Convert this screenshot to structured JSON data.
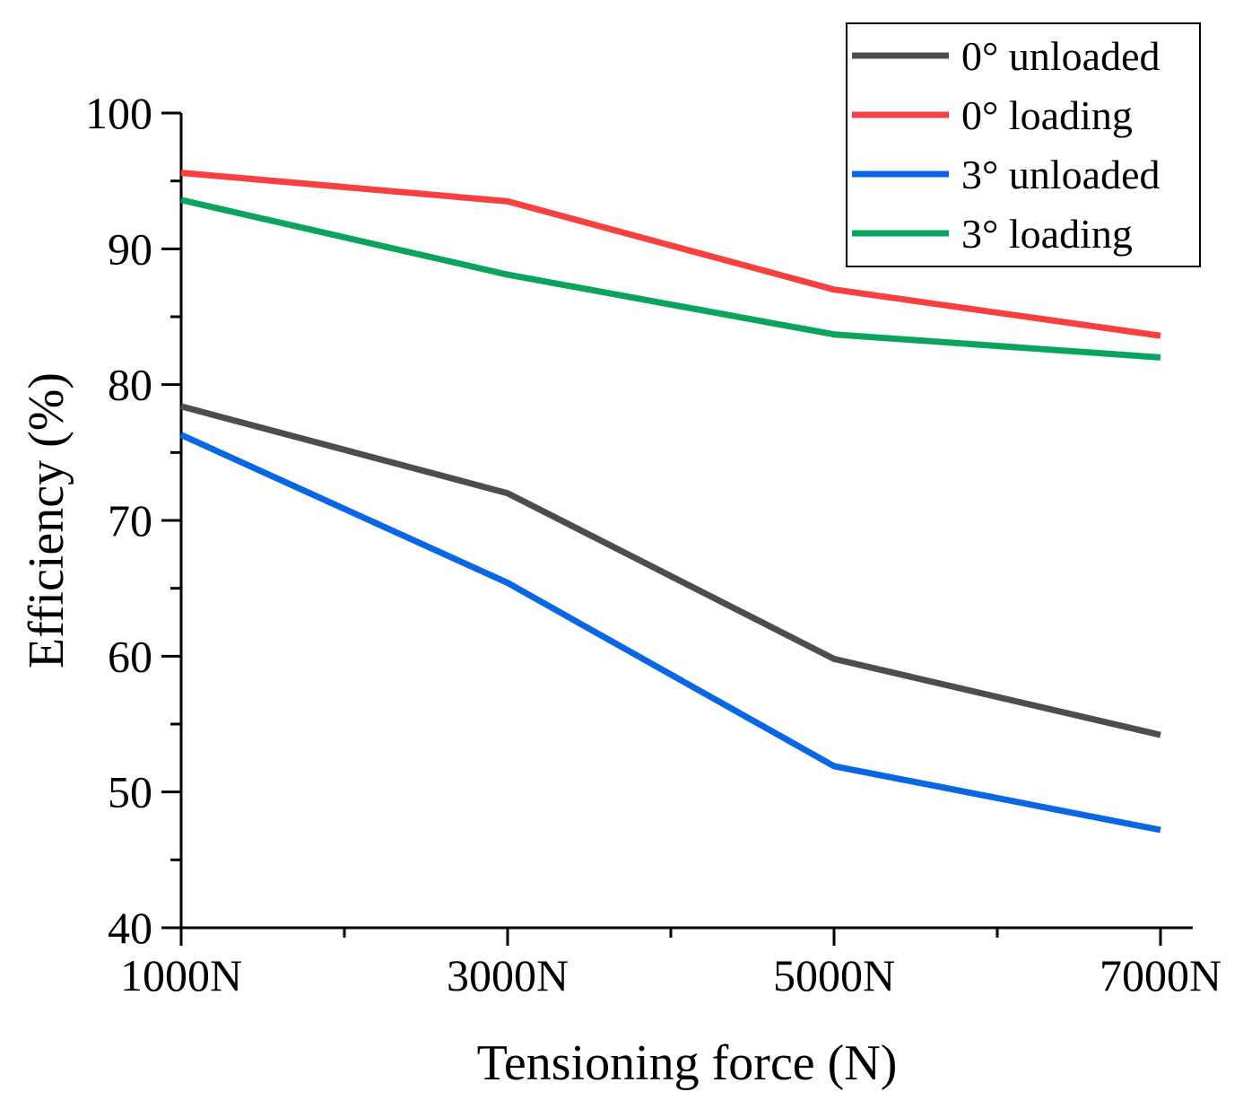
{
  "chart_data": {
    "type": "line",
    "title": "",
    "xlabel": "Tensioning force (N)",
    "ylabel": "Efficiency (%)",
    "categories": [
      "1000N",
      "3000N",
      "5000N",
      "7000N"
    ],
    "ylim": [
      40,
      100
    ],
    "yticks": [
      40,
      50,
      60,
      70,
      80,
      90,
      100
    ],
    "grid": false,
    "legend_position": "top-right",
    "series": [
      {
        "name": "0° unloaded",
        "color": "#4d4d4d",
        "values": [
          78.4,
          72.0,
          59.8,
          54.2
        ]
      },
      {
        "name": "0° loading",
        "color": "#f84040",
        "values": [
          95.6,
          93.5,
          87.0,
          83.6
        ]
      },
      {
        "name": "3° unloaded",
        "color": "#0b66e4",
        "values": [
          76.3,
          65.4,
          51.9,
          47.2
        ]
      },
      {
        "name": "3° loading",
        "color": "#0aa45c",
        "values": [
          93.6,
          88.1,
          83.7,
          82.0
        ]
      }
    ]
  }
}
